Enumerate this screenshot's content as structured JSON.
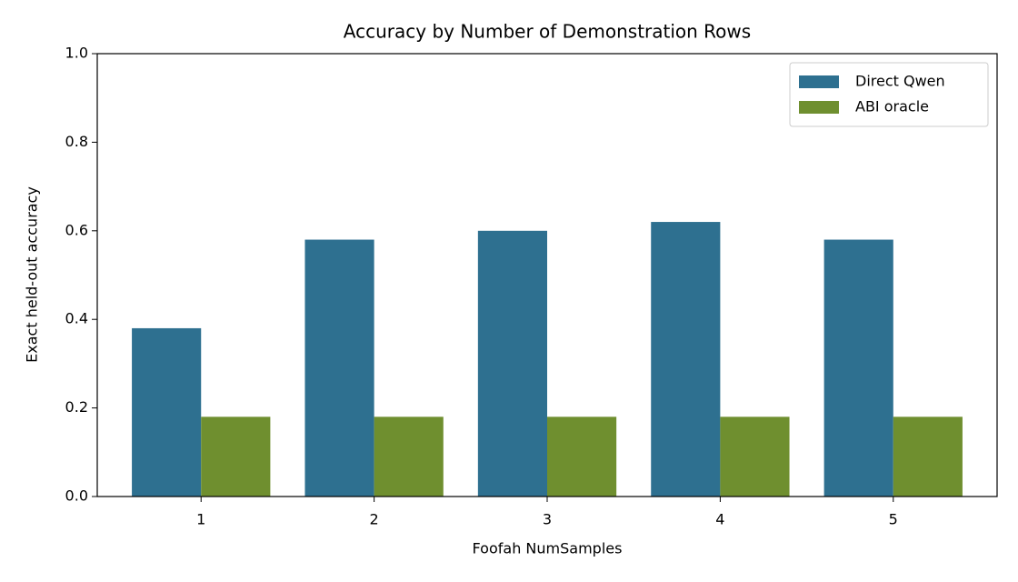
{
  "chart_data": {
    "type": "bar",
    "title": "Accuracy by Number of Demonstration Rows",
    "x_label": "Foofah NumSamples",
    "y_label": "Exact held-out accuracy",
    "categories": [
      "1",
      "2",
      "3",
      "4",
      "5"
    ],
    "series": [
      {
        "name": "Direct Qwen",
        "color": "#2e7090",
        "values": [
          0.38,
          0.58,
          0.6,
          0.62,
          0.58
        ]
      },
      {
        "name": "ABI oracle",
        "color": "#6f8f2f",
        "values": [
          0.18,
          0.18,
          0.18,
          0.18,
          0.18
        ]
      }
    ],
    "ylim": [
      0,
      1
    ],
    "yticks": [
      {
        "value": 0,
        "label": "0.0"
      },
      0.2,
      0.4,
      0.6,
      0.8,
      {
        "value": 1,
        "label": "1.0"
      }
    ],
    "grid": false,
    "legend": "upper right"
  }
}
